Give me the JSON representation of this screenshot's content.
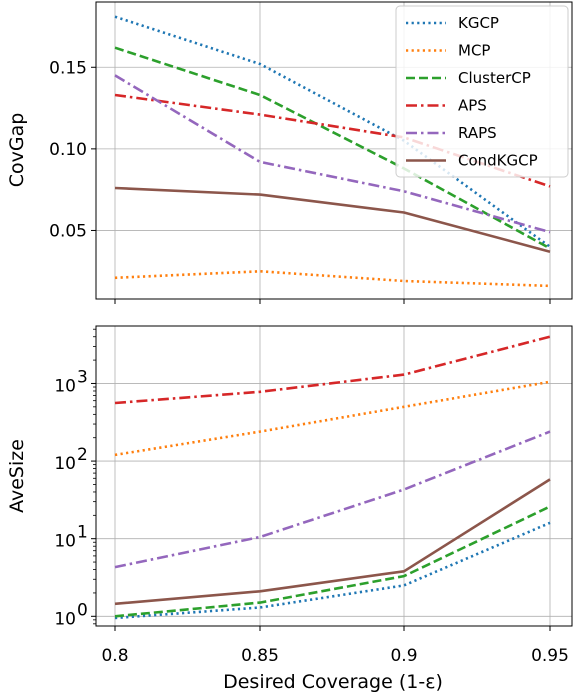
{
  "chart_data": [
    {
      "type": "line",
      "ylabel": "CovGap",
      "xlabel": "",
      "x": [
        0.8,
        0.85,
        0.9,
        0.95
      ],
      "x_tick_labels": [
        "0.8",
        "0.85",
        "0.9",
        "0.95"
      ],
      "ylim": [
        0.008,
        0.19
      ],
      "y_ticks": [
        0.05,
        0.1,
        0.15
      ],
      "y_tick_labels": [
        "0.05",
        "0.10",
        "0.15"
      ],
      "grid": true,
      "legend_position": "top-right",
      "series": [
        {
          "name": "KGCP",
          "color": "#1f77b4",
          "dash": "dotted",
          "values": [
            0.181,
            0.152,
            0.105,
            0.04
          ]
        },
        {
          "name": "MCP",
          "color": "#ff7f0e",
          "dash": "dotted",
          "values": [
            0.021,
            0.025,
            0.019,
            0.016
          ]
        },
        {
          "name": "ClusterCP",
          "color": "#2ca02c",
          "dash": "dashed",
          "values": [
            0.162,
            0.133,
            0.088,
            0.039
          ]
        },
        {
          "name": "APS",
          "color": "#d62728",
          "dash": "dashdot",
          "values": [
            0.133,
            0.121,
            0.107,
            0.077
          ]
        },
        {
          "name": "RAPS",
          "color": "#9467bd",
          "dash": "dashdot",
          "values": [
            0.145,
            0.092,
            0.074,
            0.049
          ]
        },
        {
          "name": "CondKGCP",
          "color": "#8c564b",
          "dash": "solid",
          "values": [
            0.076,
            0.072,
            0.061,
            0.037
          ]
        }
      ]
    },
    {
      "type": "line",
      "ylabel": "AveSize",
      "xlabel": "Desired Coverage (1-ε)",
      "x": [
        0.8,
        0.85,
        0.9,
        0.95
      ],
      "x_tick_labels": [
        "0.8",
        "0.85",
        "0.9",
        "0.95"
      ],
      "y_scale": "log",
      "ylim": [
        0.75,
        5500
      ],
      "y_ticks": [
        1,
        10,
        100,
        1000
      ],
      "y_tick_labels": [
        {
          "base": "10",
          "exp": "0"
        },
        {
          "base": "10",
          "exp": "1"
        },
        {
          "base": "10",
          "exp": "2"
        },
        {
          "base": "10",
          "exp": "3"
        }
      ],
      "grid": true,
      "series": [
        {
          "name": "KGCP",
          "color": "#1f77b4",
          "dash": "dotted",
          "values": [
            0.95,
            1.3,
            2.5,
            16
          ]
        },
        {
          "name": "MCP",
          "color": "#ff7f0e",
          "dash": "dotted",
          "values": [
            120,
            240,
            500,
            1050
          ]
        },
        {
          "name": "ClusterCP",
          "color": "#2ca02c",
          "dash": "dashed",
          "values": [
            1.0,
            1.5,
            3.3,
            26
          ]
        },
        {
          "name": "APS",
          "color": "#d62728",
          "dash": "dashdot",
          "values": [
            560,
            780,
            1300,
            4000
          ]
        },
        {
          "name": "RAPS",
          "color": "#9467bd",
          "dash": "dashdot",
          "values": [
            4.3,
            10.5,
            43,
            240
          ]
        },
        {
          "name": "CondKGCP",
          "color": "#8c564b",
          "dash": "solid",
          "values": [
            1.45,
            2.1,
            3.8,
            58
          ]
        }
      ]
    }
  ]
}
